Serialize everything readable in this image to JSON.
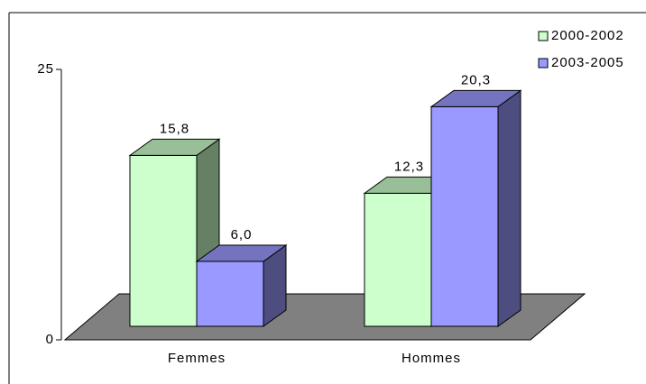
{
  "chart_data": {
    "type": "bar3d",
    "categories": [
      "Femmes",
      "Hommes"
    ],
    "series": [
      {
        "name": "2000-2002",
        "color": "#ccffcc",
        "values": [
          15.8,
          12.3
        ],
        "value_labels": [
          "15,8",
          "12,3"
        ]
      },
      {
        "name": "2003-2005",
        "color": "#9999ff",
        "values": [
          6.0,
          20.3
        ],
        "value_labels": [
          "6,0",
          "20,3"
        ]
      }
    ],
    "ylim": [
      0,
      25
    ],
    "yticks": [
      0,
      25
    ],
    "legend": "top-right"
  }
}
